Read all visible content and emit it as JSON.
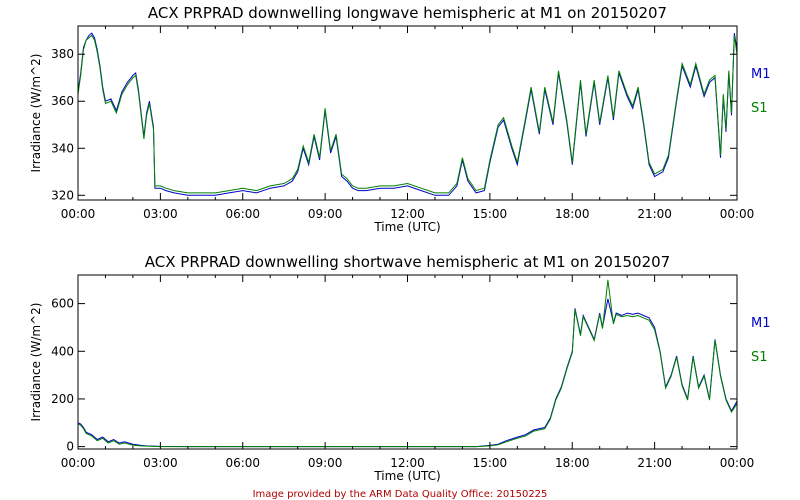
{
  "footer": {
    "text": "Image provided by the ARM Data Quality Office: 20150225",
    "color": "#b00000"
  },
  "colors": {
    "m1": "#0000cc",
    "s1": "#008000",
    "axes": "#000000"
  },
  "chart_data": [
    {
      "type": "line",
      "title": "ACX PRPRAD downwelling longwave hemispheric at M1 on 20150207",
      "xlabel": "Time (UTC)",
      "ylabel": "Irradiance (W/m^2)",
      "xlim": [
        0,
        24
      ],
      "ylim": [
        318,
        392
      ],
      "xticks": [
        0,
        3,
        6,
        9,
        12,
        15,
        18,
        21,
        24
      ],
      "xticklabels": [
        "00:00",
        "03:00",
        "06:00",
        "09:00",
        "12:00",
        "15:00",
        "18:00",
        "21:00",
        "00:00"
      ],
      "yticks": [
        320,
        340,
        360,
        380
      ],
      "yticklabels": [
        "320",
        "340",
        "360",
        "380"
      ],
      "legend": [
        "M1",
        "S1"
      ],
      "series": [
        {
          "name": "M1",
          "x": [
            0,
            0.1,
            0.2,
            0.3,
            0.4,
            0.5,
            0.6,
            0.7,
            0.8,
            0.9,
            1.0,
            1.2,
            1.4,
            1.6,
            1.8,
            2.0,
            2.1,
            2.2,
            2.4,
            2.5,
            2.6,
            2.75,
            2.8,
            3.0,
            3.2,
            3.5,
            4.0,
            4.5,
            5.0,
            5.5,
            6.0,
            6.5,
            7.0,
            7.5,
            7.8,
            8.0,
            8.2,
            8.4,
            8.6,
            8.8,
            9.0,
            9.2,
            9.4,
            9.6,
            9.8,
            10.0,
            10.2,
            10.5,
            11.0,
            11.5,
            12.0,
            12.5,
            13.0,
            13.5,
            13.8,
            14.0,
            14.2,
            14.5,
            14.8,
            15.0,
            15.3,
            15.5,
            15.8,
            16.0,
            16.3,
            16.5,
            16.8,
            17.0,
            17.3,
            17.5,
            17.8,
            18.0,
            18.3,
            18.5,
            18.8,
            19.0,
            19.3,
            19.5,
            19.7,
            20.0,
            20.2,
            20.4,
            20.6,
            20.8,
            21.0,
            21.3,
            21.5,
            21.8,
            22.0,
            22.3,
            22.5,
            22.8,
            23.0,
            23.2,
            23.4,
            23.5,
            23.6,
            23.7,
            23.8,
            23.9,
            24.0
          ],
          "y": [
            364,
            372,
            383,
            386,
            388,
            389,
            387,
            382,
            375,
            366,
            360,
            361,
            356,
            364,
            368,
            371,
            372,
            365,
            345,
            355,
            360,
            349,
            323,
            323,
            322,
            321,
            320,
            320,
            320,
            321,
            322,
            321,
            323,
            324,
            326,
            330,
            340,
            333,
            345,
            335,
            356,
            338,
            345,
            328,
            326,
            323,
            322,
            322,
            323,
            323,
            324,
            322,
            320,
            320,
            324,
            335,
            326,
            321,
            322,
            334,
            349,
            352,
            340,
            333,
            352,
            365,
            346,
            365,
            350,
            372,
            351,
            333,
            368,
            345,
            368,
            350,
            370,
            352,
            372,
            362,
            357,
            365,
            350,
            333,
            328,
            330,
            336,
            360,
            375,
            366,
            375,
            362,
            368,
            370,
            336,
            362,
            347,
            372,
            354,
            389,
            382
          ]
        },
        {
          "name": "S1",
          "x": [
            0,
            0.1,
            0.2,
            0.3,
            0.4,
            0.5,
            0.6,
            0.7,
            0.8,
            0.9,
            1.0,
            1.2,
            1.4,
            1.6,
            1.8,
            2.0,
            2.1,
            2.2,
            2.4,
            2.5,
            2.6,
            2.75,
            2.8,
            3.0,
            3.2,
            3.5,
            4.0,
            4.5,
            5.0,
            5.5,
            6.0,
            6.5,
            7.0,
            7.5,
            7.8,
            8.0,
            8.2,
            8.4,
            8.6,
            8.8,
            9.0,
            9.2,
            9.4,
            9.6,
            9.8,
            10.0,
            10.2,
            10.5,
            11.0,
            11.5,
            12.0,
            12.5,
            13.0,
            13.5,
            13.8,
            14.0,
            14.2,
            14.5,
            14.8,
            15.0,
            15.3,
            15.5,
            15.8,
            16.0,
            16.3,
            16.5,
            16.8,
            17.0,
            17.3,
            17.5,
            17.8,
            18.0,
            18.3,
            18.5,
            18.8,
            19.0,
            19.3,
            19.5,
            19.7,
            20.0,
            20.2,
            20.4,
            20.6,
            20.8,
            21.0,
            21.3,
            21.5,
            21.8,
            22.0,
            22.3,
            22.5,
            22.8,
            23.0,
            23.2,
            23.4,
            23.5,
            23.6,
            23.7,
            23.8,
            23.9,
            24.0
          ],
          "y": [
            363,
            371,
            382,
            386,
            387,
            388,
            386,
            381,
            374,
            365,
            359,
            360,
            355,
            363,
            367,
            370,
            371,
            364,
            344,
            354,
            359,
            348,
            324,
            324,
            323,
            322,
            321,
            321,
            321,
            322,
            323,
            322,
            324,
            325,
            327,
            331,
            341,
            334,
            346,
            336,
            357,
            339,
            346,
            329,
            327,
            324,
            323,
            323,
            324,
            324,
            325,
            323,
            321,
            321,
            325,
            336,
            327,
            322,
            323,
            335,
            350,
            353,
            341,
            334,
            353,
            366,
            347,
            366,
            351,
            373,
            352,
            334,
            369,
            346,
            369,
            351,
            371,
            353,
            373,
            363,
            358,
            366,
            351,
            334,
            329,
            331,
            337,
            361,
            376,
            367,
            376,
            363,
            369,
            371,
            337,
            363,
            348,
            373,
            355,
            388,
            380
          ]
        }
      ]
    },
    {
      "type": "line",
      "title": "ACX PRPRAD downwelling shortwave hemispheric at M1 on 20150207",
      "xlabel": "Time (UTC)",
      "ylabel": "Irradiance (W/m^2)",
      "xlim": [
        0,
        24
      ],
      "ylim": [
        -10,
        720
      ],
      "xticks": [
        0,
        3,
        6,
        9,
        12,
        15,
        18,
        21,
        24
      ],
      "xticklabels": [
        "00:00",
        "03:00",
        "06:00",
        "09:00",
        "12:00",
        "15:00",
        "18:00",
        "21:00",
        "00:00"
      ],
      "yticks": [
        0,
        200,
        400,
        600
      ],
      "yticklabels": [
        "0",
        "200",
        "400",
        "600"
      ],
      "legend": [
        "M1",
        "S1"
      ],
      "series": [
        {
          "name": "M1",
          "x": [
            0,
            0.1,
            0.2,
            0.3,
            0.5,
            0.7,
            0.9,
            1.1,
            1.3,
            1.5,
            1.7,
            2.0,
            2.3,
            2.5,
            3.0,
            4.0,
            5.0,
            6.0,
            9.0,
            12.0,
            14.5,
            15.0,
            15.3,
            15.6,
            16.0,
            16.3,
            16.6,
            17.0,
            17.2,
            17.4,
            17.6,
            17.8,
            18.0,
            18.1,
            18.3,
            18.4,
            18.6,
            18.8,
            19.0,
            19.1,
            19.3,
            19.5,
            19.6,
            19.8,
            20.0,
            20.2,
            20.4,
            20.6,
            20.8,
            21.0,
            21.2,
            21.4,
            21.6,
            21.8,
            22.0,
            22.2,
            22.4,
            22.6,
            22.8,
            23.0,
            23.2,
            23.4,
            23.6,
            23.8,
            24.0
          ],
          "y": [
            100,
            95,
            80,
            60,
            50,
            30,
            40,
            20,
            30,
            15,
            20,
            10,
            5,
            3,
            1,
            0,
            0,
            0,
            0,
            0,
            0,
            5,
            10,
            25,
            40,
            50,
            70,
            80,
            120,
            200,
            250,
            330,
            400,
            580,
            470,
            550,
            500,
            450,
            560,
            500,
            620,
            520,
            560,
            550,
            560,
            555,
            560,
            550,
            540,
            500,
            400,
            250,
            300,
            380,
            260,
            200,
            380,
            250,
            300,
            200,
            450,
            300,
            200,
            150,
            190
          ]
        },
        {
          "name": "S1",
          "x": [
            0,
            0.1,
            0.2,
            0.3,
            0.5,
            0.7,
            0.9,
            1.1,
            1.3,
            1.5,
            1.7,
            2.0,
            2.3,
            2.5,
            3.0,
            4.0,
            5.0,
            6.0,
            9.0,
            12.0,
            14.5,
            15.0,
            15.3,
            15.6,
            16.0,
            16.3,
            16.6,
            17.0,
            17.2,
            17.4,
            17.6,
            17.8,
            18.0,
            18.1,
            18.3,
            18.4,
            18.6,
            18.8,
            19.0,
            19.1,
            19.3,
            19.5,
            19.6,
            19.8,
            20.0,
            20.2,
            20.4,
            20.6,
            20.8,
            21.0,
            21.2,
            21.4,
            21.6,
            21.8,
            22.0,
            22.2,
            22.4,
            22.6,
            22.8,
            23.0,
            23.2,
            23.4,
            23.6,
            23.8,
            24.0
          ],
          "y": [
            95,
            90,
            75,
            55,
            45,
            25,
            35,
            15,
            25,
            10,
            15,
            6,
            3,
            2,
            0,
            0,
            0,
            0,
            0,
            0,
            0,
            3,
            8,
            20,
            35,
            45,
            65,
            75,
            115,
            195,
            245,
            325,
            395,
            575,
            465,
            545,
            495,
            445,
            555,
            495,
            700,
            515,
            555,
            545,
            550,
            545,
            550,
            540,
            530,
            490,
            395,
            245,
            295,
            375,
            255,
            195,
            375,
            245,
            295,
            195,
            445,
            295,
            195,
            145,
            180
          ]
        }
      ]
    }
  ]
}
